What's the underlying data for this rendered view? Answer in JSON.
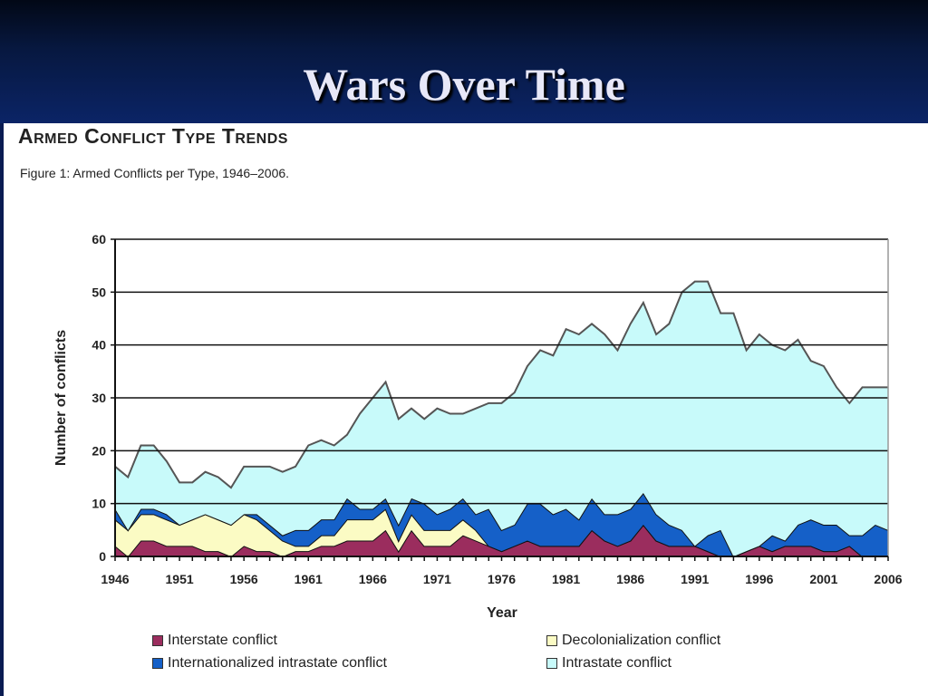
{
  "slide": {
    "title": "Wars Over Time"
  },
  "figure": {
    "heading": "Armed Conflict Type Trends",
    "caption": "Figure 1: Armed Conflicts per Type, 1946–2006."
  },
  "chart_data": {
    "type": "area",
    "stacked": true,
    "title": "Armed Conflicts per Type, 1946–2006",
    "xlabel": "Year",
    "ylabel": "Number of conflicts",
    "xlim": [
      1946,
      2006
    ],
    "ylim": [
      0,
      60
    ],
    "yticks": [
      "0",
      "10",
      "20",
      "30",
      "40",
      "50",
      "60"
    ],
    "xticks": [
      "1946",
      "1951",
      "1956",
      "1961",
      "1966",
      "1971",
      "1976",
      "1981",
      "1986",
      "1991",
      "1996",
      "2001",
      "2006"
    ],
    "grid": true,
    "legend_position": "bottom",
    "series": [
      {
        "name": "Interstate conflict",
        "color": "#9b2d5e",
        "values": [
          2,
          0,
          3,
          3,
          2,
          2,
          2,
          1,
          1,
          0,
          2,
          1,
          1,
          0,
          1,
          1,
          2,
          2,
          3,
          3,
          3,
          5,
          1,
          5,
          2,
          2,
          2,
          4,
          3,
          2,
          1,
          2,
          3,
          2,
          2,
          2,
          2,
          5,
          3,
          2,
          3,
          6,
          3,
          2,
          2,
          2,
          1,
          0,
          0,
          1,
          2,
          1,
          2,
          2,
          2,
          1,
          1,
          2,
          0,
          0,
          0
        ]
      },
      {
        "name": "Decolonialization conflict",
        "color": "#fbfbc4",
        "values": [
          5,
          5,
          5,
          5,
          5,
          4,
          5,
          7,
          6,
          6,
          6,
          6,
          4,
          3,
          1,
          1,
          2,
          2,
          4,
          4,
          4,
          4,
          2,
          3,
          3,
          3,
          3,
          3,
          2,
          0,
          0,
          0,
          0,
          0,
          0,
          0,
          0,
          0,
          0,
          0,
          0,
          0,
          0,
          0,
          0,
          0,
          0,
          0,
          0,
          0,
          0,
          0,
          0,
          0,
          0,
          0,
          0,
          0,
          0,
          0,
          0
        ]
      },
      {
        "name": "Internationalized intrastate conflict",
        "color": "#1560c8",
        "values": [
          2,
          0,
          1,
          1,
          1,
          0,
          0,
          0,
          0,
          0,
          0,
          1,
          1,
          1,
          3,
          3,
          3,
          3,
          4,
          2,
          2,
          2,
          3,
          3,
          5,
          3,
          4,
          4,
          3,
          7,
          4,
          4,
          7,
          8,
          6,
          7,
          5,
          6,
          5,
          6,
          6,
          6,
          5,
          4,
          3,
          0,
          3,
          5,
          0,
          0,
          0,
          3,
          1,
          4,
          5,
          5,
          5,
          2,
          4,
          6,
          5
        ]
      },
      {
        "name": "Intrastate conflict",
        "color": "#c8fafa",
        "values": [
          8,
          10,
          12,
          12,
          10,
          8,
          7,
          8,
          8,
          7,
          9,
          9,
          11,
          12,
          12,
          16,
          15,
          14,
          12,
          18,
          21,
          22,
          20,
          17,
          16,
          20,
          18,
          16,
          20,
          20,
          24,
          25,
          26,
          29,
          30,
          34,
          35,
          33,
          34,
          31,
          35,
          36,
          34,
          38,
          45,
          50,
          48,
          41,
          46,
          38,
          40,
          36,
          36,
          35,
          30,
          30,
          26,
          25,
          28,
          26,
          27
        ]
      }
    ]
  }
}
